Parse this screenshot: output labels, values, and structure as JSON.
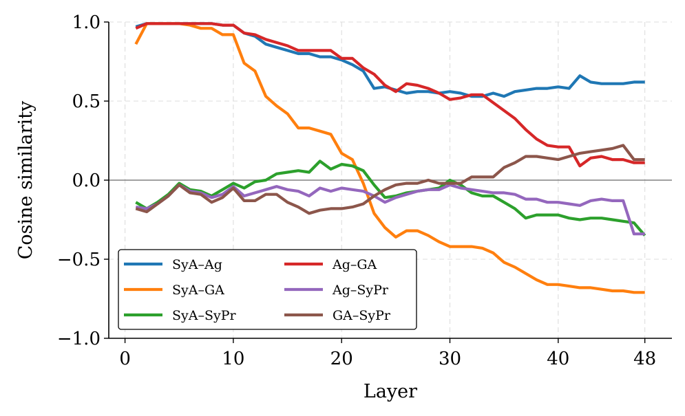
{
  "chart_data": {
    "type": "line",
    "title": "",
    "xlabel": "Layer",
    "ylabel": "Cosine similarity",
    "xlim": [
      -1.5,
      50.5
    ],
    "ylim": [
      -1.0,
      1.0
    ],
    "xticks": [
      0,
      10,
      20,
      30,
      40,
      48
    ],
    "xtick_labels": [
      "0",
      "10",
      "20",
      "30",
      "40",
      "48"
    ],
    "yticks": [
      1.0,
      0.5,
      0.0,
      -0.5,
      -1.0
    ],
    "ytick_labels": [
      "1.0",
      "0.5",
      "0.0",
      "−0.5",
      "−1.0"
    ],
    "grid": true,
    "zero_line": 0,
    "legend_position": "lower-left",
    "legend_columns": 2,
    "x": [
      1,
      2,
      3,
      4,
      5,
      6,
      7,
      8,
      9,
      10,
      11,
      12,
      13,
      14,
      15,
      16,
      17,
      18,
      19,
      20,
      21,
      22,
      23,
      24,
      25,
      26,
      27,
      28,
      29,
      30,
      31,
      32,
      33,
      34,
      35,
      36,
      37,
      38,
      39,
      40,
      41,
      42,
      43,
      44,
      45,
      46,
      47,
      48
    ],
    "series": [
      {
        "name": "SyA–Ag",
        "color": "#1f77b4",
        "values": [
          0.97,
          0.99,
          0.99,
          0.99,
          0.99,
          0.99,
          0.99,
          0.99,
          0.98,
          0.98,
          0.93,
          0.91,
          0.86,
          0.84,
          0.82,
          0.8,
          0.8,
          0.78,
          0.78,
          0.76,
          0.73,
          0.69,
          0.58,
          0.59,
          0.57,
          0.55,
          0.56,
          0.56,
          0.55,
          0.56,
          0.55,
          0.53,
          0.53,
          0.55,
          0.53,
          0.56,
          0.57,
          0.58,
          0.58,
          0.59,
          0.58,
          0.66,
          0.62,
          0.61,
          0.61,
          0.61,
          0.62,
          0.62
        ]
      },
      {
        "name": "SyA–GA",
        "color": "#ff7f0e",
        "values": [
          0.86,
          0.99,
          0.99,
          0.99,
          0.99,
          0.98,
          0.96,
          0.96,
          0.92,
          0.92,
          0.74,
          0.69,
          0.53,
          0.47,
          0.42,
          0.33,
          0.33,
          0.31,
          0.29,
          0.17,
          0.13,
          -0.02,
          -0.21,
          -0.3,
          -0.36,
          -0.32,
          -0.32,
          -0.35,
          -0.39,
          -0.42,
          -0.42,
          -0.42,
          -0.43,
          -0.46,
          -0.52,
          -0.55,
          -0.59,
          -0.63,
          -0.66,
          -0.66,
          -0.67,
          -0.68,
          -0.68,
          -0.69,
          -0.7,
          -0.7,
          -0.71,
          -0.71
        ]
      },
      {
        "name": "SyA–SyPr",
        "color": "#2ca02c",
        "values": [
          -0.14,
          -0.18,
          -0.14,
          -0.09,
          -0.02,
          -0.06,
          -0.07,
          -0.1,
          -0.06,
          -0.02,
          -0.05,
          -0.01,
          0.0,
          0.04,
          0.05,
          0.06,
          0.05,
          0.12,
          0.07,
          0.1,
          0.09,
          0.06,
          -0.03,
          -0.11,
          -0.1,
          -0.08,
          -0.07,
          -0.06,
          -0.05,
          0.0,
          -0.03,
          -0.08,
          -0.1,
          -0.1,
          -0.14,
          -0.18,
          -0.24,
          -0.22,
          -0.22,
          -0.22,
          -0.24,
          -0.25,
          -0.24,
          -0.24,
          -0.25,
          -0.26,
          -0.27,
          -0.35
        ]
      },
      {
        "name": "Ag–GA",
        "color": "#d62728",
        "values": [
          0.96,
          0.99,
          0.99,
          0.99,
          0.99,
          0.99,
          0.99,
          0.99,
          0.98,
          0.98,
          0.93,
          0.92,
          0.89,
          0.87,
          0.85,
          0.82,
          0.82,
          0.82,
          0.82,
          0.77,
          0.77,
          0.71,
          0.67,
          0.6,
          0.56,
          0.61,
          0.6,
          0.58,
          0.55,
          0.51,
          0.52,
          0.54,
          0.54,
          0.49,
          0.44,
          0.39,
          0.32,
          0.26,
          0.22,
          0.21,
          0.21,
          0.09,
          0.14,
          0.15,
          0.13,
          0.13,
          0.11,
          0.11
        ]
      },
      {
        "name": "Ag–SyPr",
        "color": "#9467bd",
        "values": [
          -0.17,
          -0.18,
          -0.15,
          -0.1,
          -0.03,
          -0.07,
          -0.08,
          -0.11,
          -0.09,
          -0.04,
          -0.1,
          -0.08,
          -0.06,
          -0.04,
          -0.06,
          -0.07,
          -0.1,
          -0.05,
          -0.07,
          -0.05,
          -0.06,
          -0.07,
          -0.1,
          -0.14,
          -0.11,
          -0.09,
          -0.07,
          -0.06,
          -0.06,
          -0.03,
          -0.05,
          -0.06,
          -0.07,
          -0.08,
          -0.08,
          -0.09,
          -0.12,
          -0.12,
          -0.14,
          -0.14,
          -0.15,
          -0.16,
          -0.13,
          -0.12,
          -0.13,
          -0.13,
          -0.34,
          -0.34
        ]
      },
      {
        "name": "GA–SyPr",
        "color": "#8c564b",
        "values": [
          -0.18,
          -0.2,
          -0.15,
          -0.1,
          -0.03,
          -0.08,
          -0.09,
          -0.14,
          -0.11,
          -0.05,
          -0.13,
          -0.13,
          -0.09,
          -0.09,
          -0.14,
          -0.17,
          -0.21,
          -0.19,
          -0.18,
          -0.18,
          -0.17,
          -0.15,
          -0.1,
          -0.06,
          -0.03,
          -0.02,
          -0.02,
          0.0,
          -0.02,
          -0.02,
          -0.02,
          0.02,
          0.02,
          0.02,
          0.08,
          0.11,
          0.15,
          0.15,
          0.14,
          0.13,
          0.15,
          0.17,
          0.18,
          0.19,
          0.2,
          0.22,
          0.13,
          0.13
        ]
      }
    ]
  }
}
